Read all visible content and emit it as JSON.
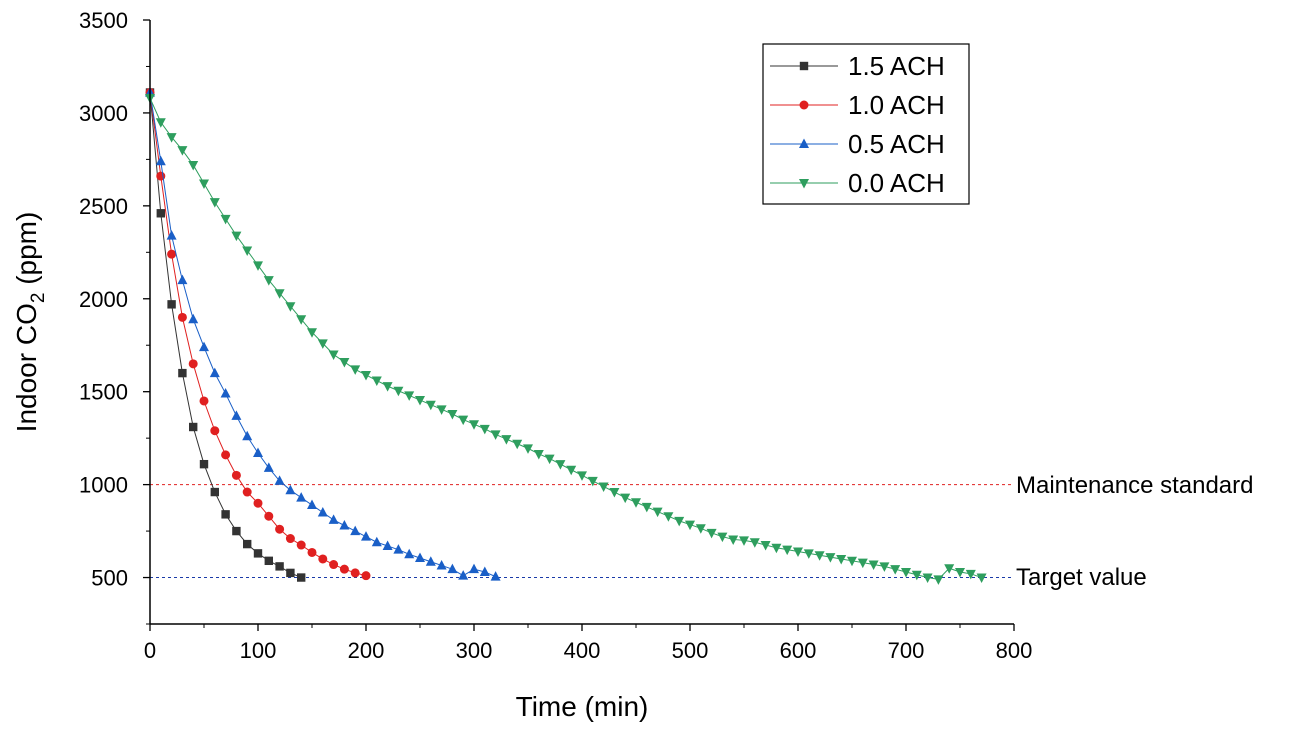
{
  "chart_data": {
    "type": "line",
    "title": "",
    "xlabel": "Time (min)",
    "ylabel_prefix": "Indoor CO",
    "ylabel_sub": "2",
    "ylabel_suffix": " (ppm)",
    "xlim": [
      0,
      800
    ],
    "ylim": [
      250,
      3500
    ],
    "xticks": [
      0,
      100,
      200,
      300,
      400,
      500,
      600,
      700,
      800
    ],
    "yticks": [
      500,
      1000,
      1500,
      2000,
      2500,
      3000,
      3500
    ],
    "legend_position": "top-right",
    "series": [
      {
        "name": "1.5 ACH",
        "color": "#333333",
        "marker": "square",
        "x": [
          0,
          10,
          20,
          30,
          40,
          50,
          60,
          70,
          80,
          90,
          100,
          110,
          120,
          130,
          140
        ],
        "y": [
          3110,
          2460,
          1970,
          1600,
          1310,
          1110,
          960,
          840,
          750,
          680,
          630,
          590,
          560,
          525,
          500
        ]
      },
      {
        "name": "1.0 ACH",
        "color": "#e02020",
        "marker": "circle",
        "x": [
          0,
          10,
          20,
          30,
          40,
          50,
          60,
          70,
          80,
          90,
          100,
          110,
          120,
          130,
          140,
          150,
          160,
          170,
          180,
          190,
          200
        ],
        "y": [
          3110,
          2660,
          2240,
          1900,
          1650,
          1450,
          1290,
          1160,
          1050,
          960,
          900,
          830,
          760,
          710,
          675,
          635,
          600,
          570,
          545,
          525,
          510
        ]
      },
      {
        "name": "0.5 ACH",
        "color": "#1a5fc7",
        "marker": "triangle-up",
        "x": [
          0,
          10,
          20,
          30,
          40,
          50,
          60,
          70,
          80,
          90,
          100,
          110,
          120,
          130,
          140,
          150,
          160,
          170,
          180,
          190,
          200,
          210,
          220,
          230,
          240,
          250,
          260,
          270,
          280,
          290,
          300,
          310,
          320
        ],
        "y": [
          3110,
          2740,
          2340,
          2100,
          1890,
          1740,
          1600,
          1490,
          1370,
          1260,
          1170,
          1090,
          1020,
          970,
          930,
          890,
          850,
          810,
          780,
          750,
          720,
          690,
          670,
          650,
          625,
          605,
          585,
          565,
          545,
          510,
          545,
          530,
          505
        ]
      },
      {
        "name": "0.0 ACH",
        "color": "#2e9e5e",
        "marker": "triangle-down",
        "x": [
          0,
          10,
          20,
          30,
          40,
          50,
          60,
          70,
          80,
          90,
          100,
          110,
          120,
          130,
          140,
          150,
          160,
          170,
          180,
          190,
          200,
          210,
          220,
          230,
          240,
          250,
          260,
          270,
          280,
          290,
          300,
          310,
          320,
          330,
          340,
          350,
          360,
          370,
          380,
          390,
          400,
          410,
          420,
          430,
          440,
          450,
          460,
          470,
          480,
          490,
          500,
          510,
          520,
          530,
          540,
          550,
          560,
          570,
          580,
          590,
          600,
          610,
          620,
          630,
          640,
          650,
          660,
          670,
          680,
          690,
          700,
          710,
          720,
          730,
          740,
          750,
          760,
          770
        ],
        "y": [
          3080,
          2950,
          2870,
          2800,
          2720,
          2620,
          2520,
          2430,
          2340,
          2260,
          2180,
          2100,
          2030,
          1960,
          1890,
          1820,
          1760,
          1700,
          1660,
          1620,
          1590,
          1560,
          1530,
          1505,
          1480,
          1455,
          1430,
          1405,
          1380,
          1350,
          1325,
          1300,
          1270,
          1245,
          1220,
          1195,
          1165,
          1140,
          1110,
          1080,
          1050,
          1020,
          990,
          960,
          930,
          905,
          880,
          855,
          830,
          805,
          785,
          765,
          740,
          720,
          705,
          700,
          690,
          675,
          660,
          650,
          640,
          630,
          620,
          610,
          600,
          590,
          580,
          570,
          560,
          545,
          530,
          515,
          500,
          490,
          550,
          530,
          520,
          500
        ]
      }
    ],
    "reference_lines": [
      {
        "label": "Maintenance standard",
        "value": 1000,
        "color": "#e02020"
      },
      {
        "label": "Target value",
        "value": 500,
        "color": "#1a3aa8"
      }
    ]
  }
}
